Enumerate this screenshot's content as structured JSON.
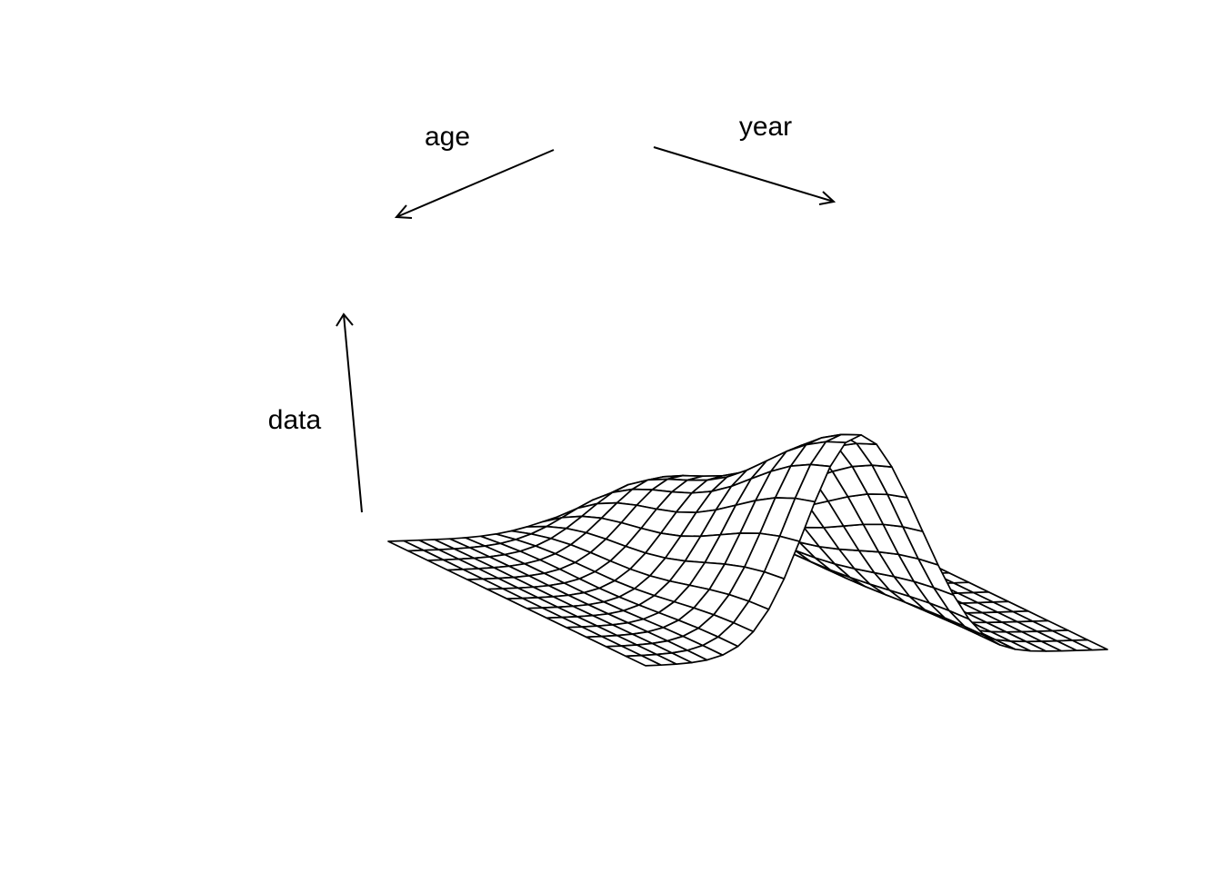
{
  "chart_data": {
    "type": "surface",
    "title": "",
    "xlabel": "age",
    "ylabel": "year",
    "zlabel": "data",
    "rows": 13,
    "cols": 30,
    "xlim": [
      0,
      1
    ],
    "ylim": [
      0,
      1
    ],
    "zlim": [
      0,
      1
    ],
    "grid": false,
    "ridges": [
      {
        "center": 0.46,
        "width": 0.16,
        "height": 0.5
      },
      {
        "center": 0.62,
        "width": 0.1,
        "height": 0.05
      }
    ]
  },
  "colors": {
    "line": "#000000",
    "background": "#ffffff",
    "surface": "#ffffff"
  }
}
